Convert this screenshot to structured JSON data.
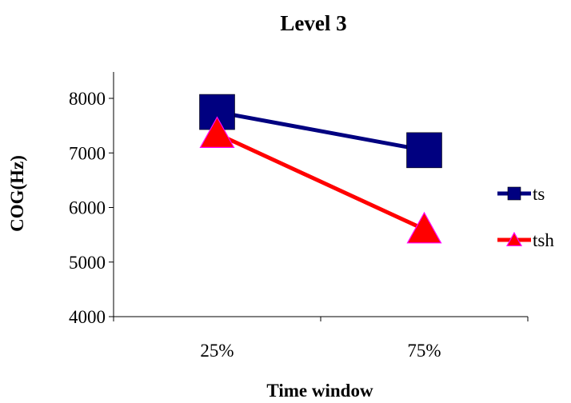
{
  "chart_data": {
    "type": "line",
    "title": "Level 3",
    "xlabel": "Time window",
    "ylabel": "COG(Hz)",
    "categories": [
      "25%",
      "75%"
    ],
    "ylim": [
      4000,
      8000
    ],
    "yticks": [
      4000,
      5000,
      6000,
      7000,
      8000
    ],
    "grid": false,
    "legend": "right",
    "series": [
      {
        "name": "ts",
        "values": [
          7750,
          7050
        ],
        "color": "#000080",
        "marker": "square",
        "marker_color": "#000080"
      },
      {
        "name": "tsh",
        "values": [
          7350,
          5600
        ],
        "color": "#ff0000",
        "marker": "triangle",
        "marker_color": "#ff0000"
      }
    ]
  }
}
